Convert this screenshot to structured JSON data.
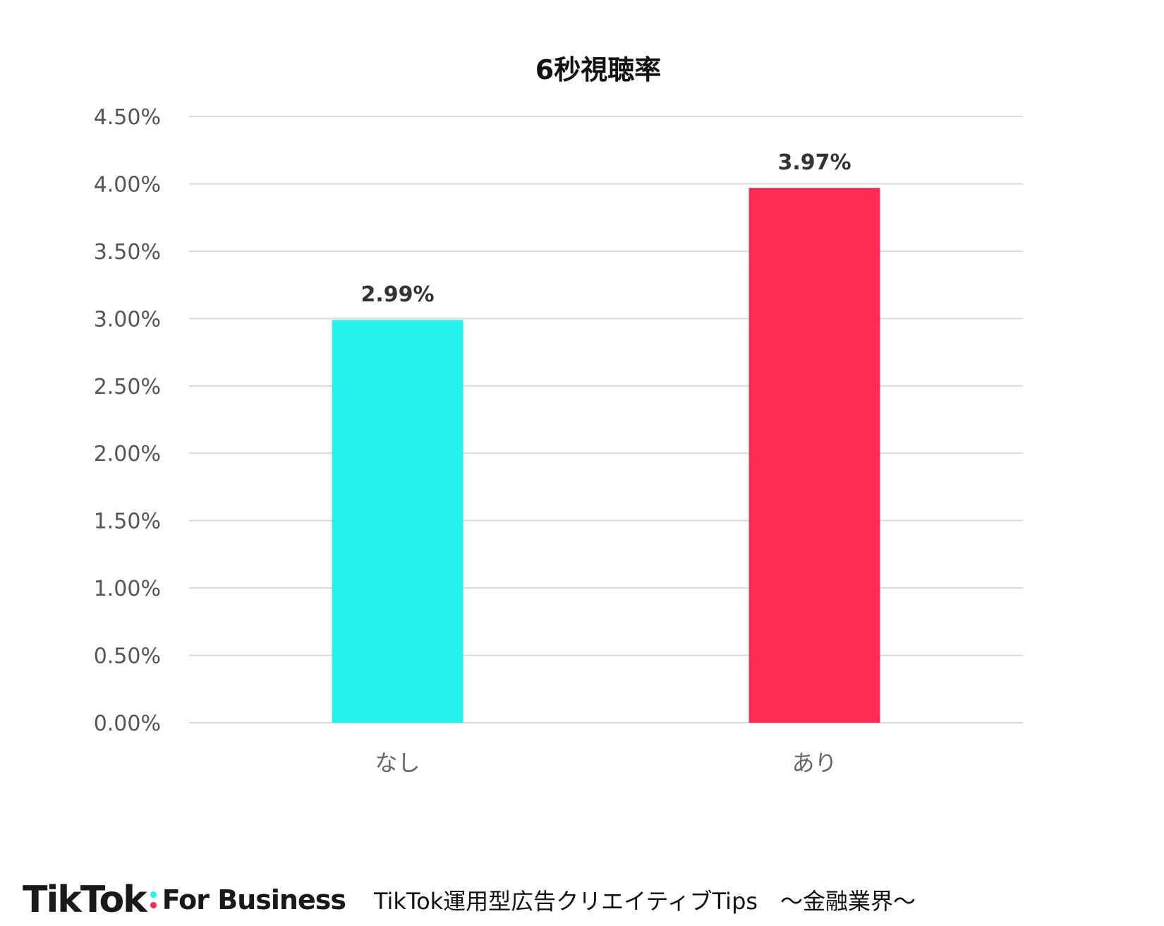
{
  "chart_data": {
    "type": "bar",
    "title": "6秒視聴率",
    "categories": [
      "なし",
      "あり"
    ],
    "values": [
      2.99,
      3.97
    ],
    "data_labels": [
      "2.99%",
      "3.97%"
    ],
    "colors": [
      "#25f4ee",
      "#fe2c55"
    ],
    "ylim": [
      0,
      4.5
    ],
    "y_tick_step": 0.5,
    "y_ticks": [
      "0.00%",
      "0.50%",
      "1.00%",
      "1.50%",
      "2.00%",
      "2.50%",
      "3.00%",
      "3.50%",
      "4.00%",
      "4.50%"
    ],
    "grid": true,
    "legend": "none"
  },
  "footer": {
    "brand_name": "TikTok",
    "brand_suffix": "For Business",
    "caption": "TikTok運用型広告クリエイティブTips　～金融業界～"
  },
  "brand_colors": {
    "cyan": "#25f4ee",
    "red": "#fe2c55"
  }
}
